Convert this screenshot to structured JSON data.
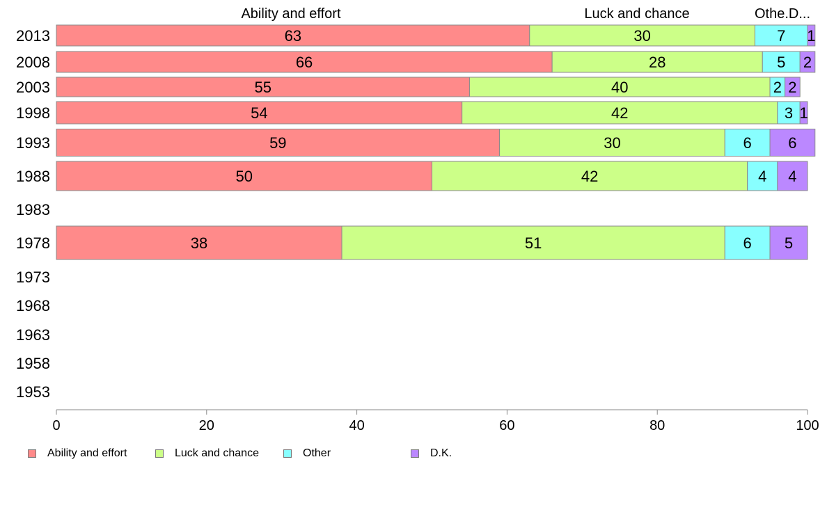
{
  "chart_data": {
    "type": "bar",
    "orientation": "horizontal",
    "stacked": true,
    "categories": [
      "2013",
      "2008",
      "2003",
      "1998",
      "1993",
      "1988",
      "1983",
      "1978",
      "1973",
      "1968",
      "1963",
      "1958",
      "1953"
    ],
    "series": [
      {
        "name": "Ability and effort",
        "color": "#ff8a8a",
        "values": [
          63,
          66,
          55,
          54,
          59,
          50,
          null,
          38,
          null,
          null,
          null,
          null,
          null
        ]
      },
      {
        "name": "Luck and chance",
        "color": "#ccff88",
        "values": [
          30,
          28,
          40,
          42,
          30,
          42,
          null,
          51,
          null,
          null,
          null,
          null,
          null
        ]
      },
      {
        "name": "Other",
        "color": "#88ffff",
        "values": [
          7,
          5,
          2,
          3,
          6,
          4,
          null,
          6,
          null,
          null,
          null,
          null,
          null
        ]
      },
      {
        "name": "D.K.",
        "color": "#bb88ff",
        "values": [
          1,
          2,
          2,
          1,
          6,
          4,
          null,
          5,
          null,
          null,
          null,
          null,
          null
        ]
      }
    ],
    "xlim": [
      0,
      100
    ],
    "xticks": [
      0,
      20,
      40,
      60,
      80,
      100
    ],
    "top_labels": [
      "Ability and effort",
      "Luck and chance",
      "Othe.D..."
    ],
    "legend_position": "bottom-left",
    "grid": false
  }
}
